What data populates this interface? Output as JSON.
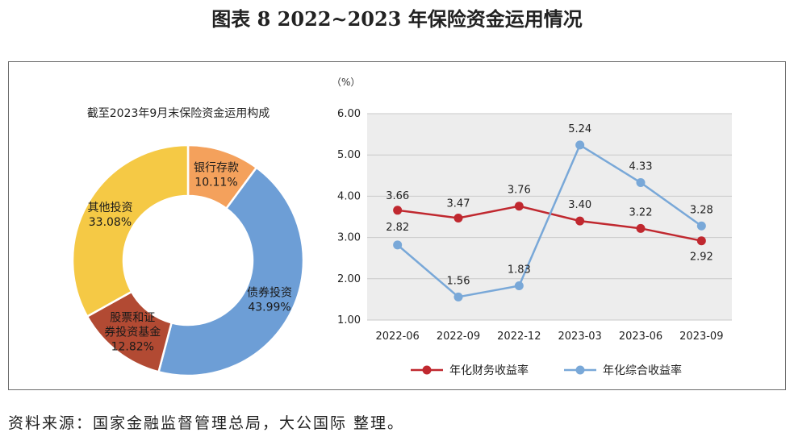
{
  "figure_title": "图表 8  2022~2023 年保险资金运用情况",
  "source_note": "资料来源：国家金融监督管理总局，大公国际 整理。",
  "chart_data": [
    {
      "type": "pie",
      "title": "截至2023年9月末保险资金运用构成",
      "slices": [
        {
          "label": "银行存款",
          "value": 10.11,
          "value_label": "10.11%",
          "color": "#f4a15c"
        },
        {
          "label": "债券投资",
          "value": 43.99,
          "value_label": "43.99%",
          "color": "#6d9ed6"
        },
        {
          "label": "股票和证券投资基金",
          "label_lines": [
            "股票和证",
            "券投资基金"
          ],
          "value": 12.82,
          "value_label": "12.82%",
          "color": "#b24a33"
        },
        {
          "label": "其他投资",
          "value": 33.08,
          "value_label": "33.08%",
          "color": "#f5c945"
        }
      ]
    },
    {
      "type": "line",
      "ylabel": "（%）",
      "categories": [
        "2022-06",
        "2022-09",
        "2022-12",
        "2023-03",
        "2023-06",
        "2023-09"
      ],
      "ylim": [
        1.0,
        6.0
      ],
      "yticks": [
        "1.00",
        "2.00",
        "3.00",
        "4.00",
        "5.00",
        "6.00"
      ],
      "grid": true,
      "legend": "bottom",
      "series": [
        {
          "name": "年化财务收益率",
          "color": "#c0282f",
          "values": [
            3.66,
            3.47,
            3.76,
            3.4,
            3.22,
            2.92
          ],
          "labels": [
            "3.66",
            "3.47",
            "3.76",
            "3.40",
            "3.22",
            "2.92"
          ]
        },
        {
          "name": "年化综合收益率",
          "color": "#79a8d8",
          "values": [
            2.82,
            1.56,
            1.83,
            5.24,
            4.33,
            3.28
          ],
          "labels": [
            "2.82",
            "1.56",
            "1.83",
            "5.24",
            "4.33",
            "3.28"
          ]
        }
      ]
    }
  ]
}
